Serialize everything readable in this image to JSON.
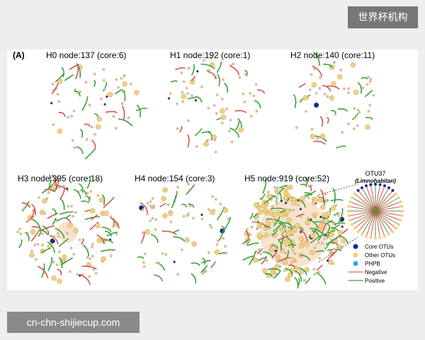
{
  "badge": "世界杯机构",
  "figure": {
    "label": "(A)",
    "panels": [
      {
        "title": "H0  node:137 (core:6)"
      },
      {
        "title": "H1  node:192 (core:1)"
      },
      {
        "title": "H2  node:140 (core:11)"
      },
      {
        "title": "H3  node:395 (core:18)"
      },
      {
        "title": "H4  node:154 (core:3)"
      },
      {
        "title": "H5  node:919 (core:52)"
      }
    ],
    "otu": {
      "name": "OTU37",
      "taxon": "(Limnohabitan)"
    },
    "legend": [
      "Core OTUs",
      "Other OTUs",
      "PHPB",
      "Negative",
      "Positive"
    ]
  },
  "footer": "cn-chn-shijiecup.com"
}
